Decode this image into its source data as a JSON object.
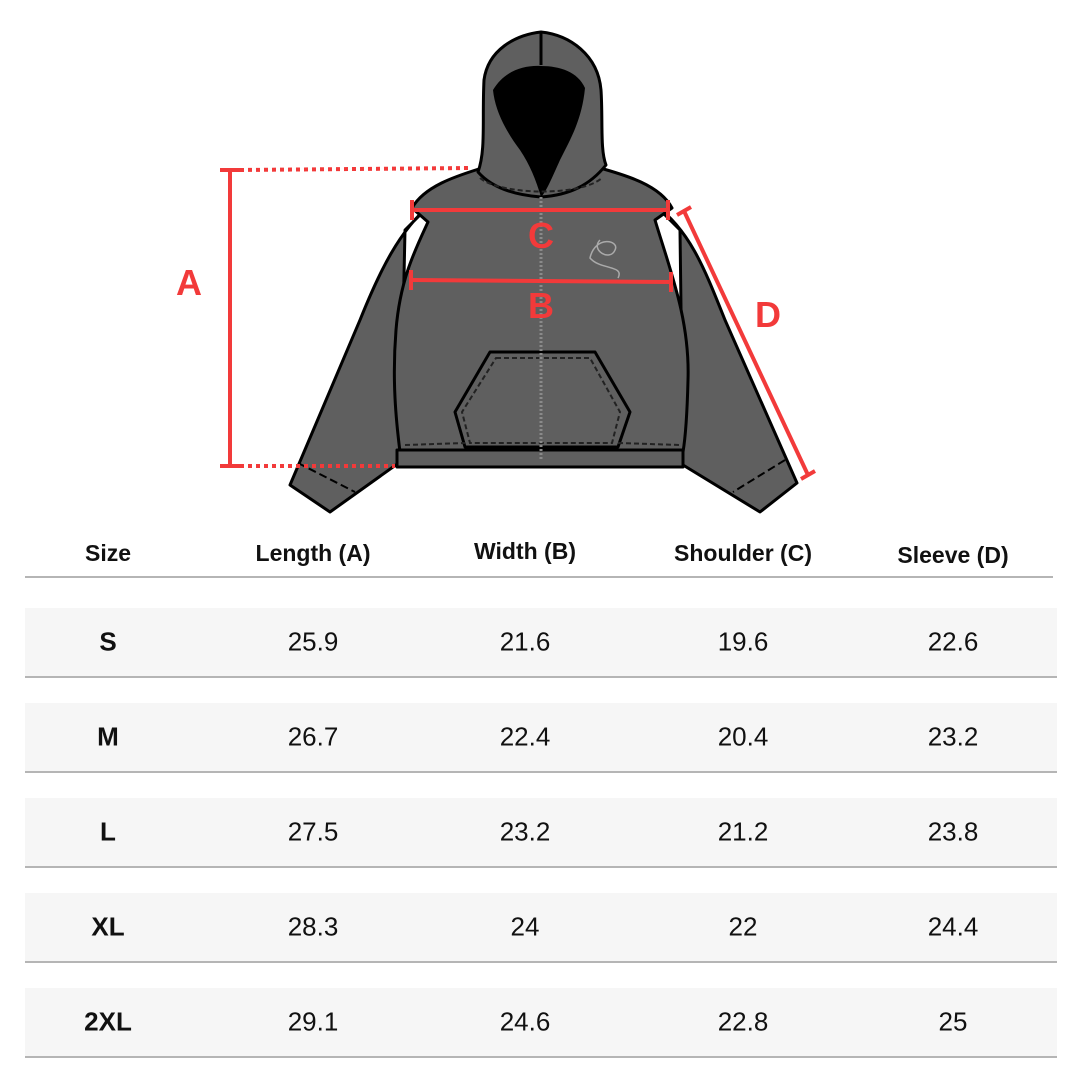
{
  "diagram": {
    "labels": {
      "length": "A",
      "width": "B",
      "shoulder": "C",
      "sleeve": "D"
    },
    "colors": {
      "garment": "#5f5f5f",
      "outline": "#000000",
      "measure": "#f23a3a"
    }
  },
  "table": {
    "headers": [
      "Size",
      "Length (A)",
      "Width (B)",
      "Shoulder (C)",
      "Sleeve (D)"
    ],
    "rows": [
      [
        "S",
        "25.9",
        "21.6",
        "19.6",
        "22.6"
      ],
      [
        "M",
        "26.7",
        "22.4",
        "20.4",
        "23.2"
      ],
      [
        "L",
        "27.5",
        "23.2",
        "21.2",
        "23.8"
      ],
      [
        "XL",
        "28.3",
        "24",
        "22",
        "24.4"
      ],
      [
        "2XL",
        "29.1",
        "24.6",
        "22.8",
        "25"
      ]
    ]
  }
}
